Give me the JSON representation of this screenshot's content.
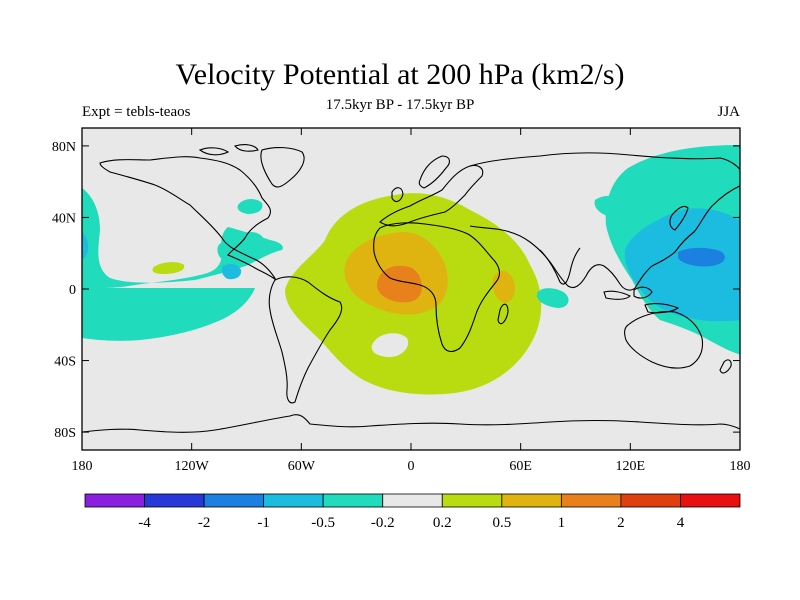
{
  "header": {
    "title": "Velocity Potential at 200 hPa (km2/s)",
    "subtitle": "17.5kyr BP - 17.5kyr BP",
    "left_label": "Expt = tebls-teaos",
    "right_label": "JJA"
  },
  "map": {
    "projection": "cylindrical-equidistant",
    "lon_range": [
      -180,
      180
    ],
    "lat_range": [
      -90,
      90
    ],
    "lat_ticks": [
      {
        "value": 80,
        "label": "80N"
      },
      {
        "value": 40,
        "label": "40N"
      },
      {
        "value": 0,
        "label": "0"
      },
      {
        "value": -40,
        "label": "40S"
      },
      {
        "value": -80,
        "label": "80S"
      }
    ],
    "lon_ticks": [
      {
        "value": -180,
        "label": "180"
      },
      {
        "value": -120,
        "label": "120W"
      },
      {
        "value": -60,
        "label": "60W"
      },
      {
        "value": 0,
        "label": "0"
      },
      {
        "value": 60,
        "label": "60E"
      },
      {
        "value": 120,
        "label": "120E"
      },
      {
        "value": 180,
        "label": "180"
      }
    ],
    "background_color": "#e8e8e8"
  },
  "colorbar": {
    "colors": [
      "#8b1fe0",
      "#2838d8",
      "#1c80e0",
      "#1cbce0",
      "#20dcbc",
      "#e8e8e8",
      "#b8dc10",
      "#e0b410",
      "#e8801c",
      "#e04010",
      "#e81010"
    ],
    "labels": [
      "-4",
      "-2",
      "-1",
      "-0.5",
      "-0.2",
      "0.2",
      "0.5",
      "1",
      "2",
      "4"
    ]
  }
}
